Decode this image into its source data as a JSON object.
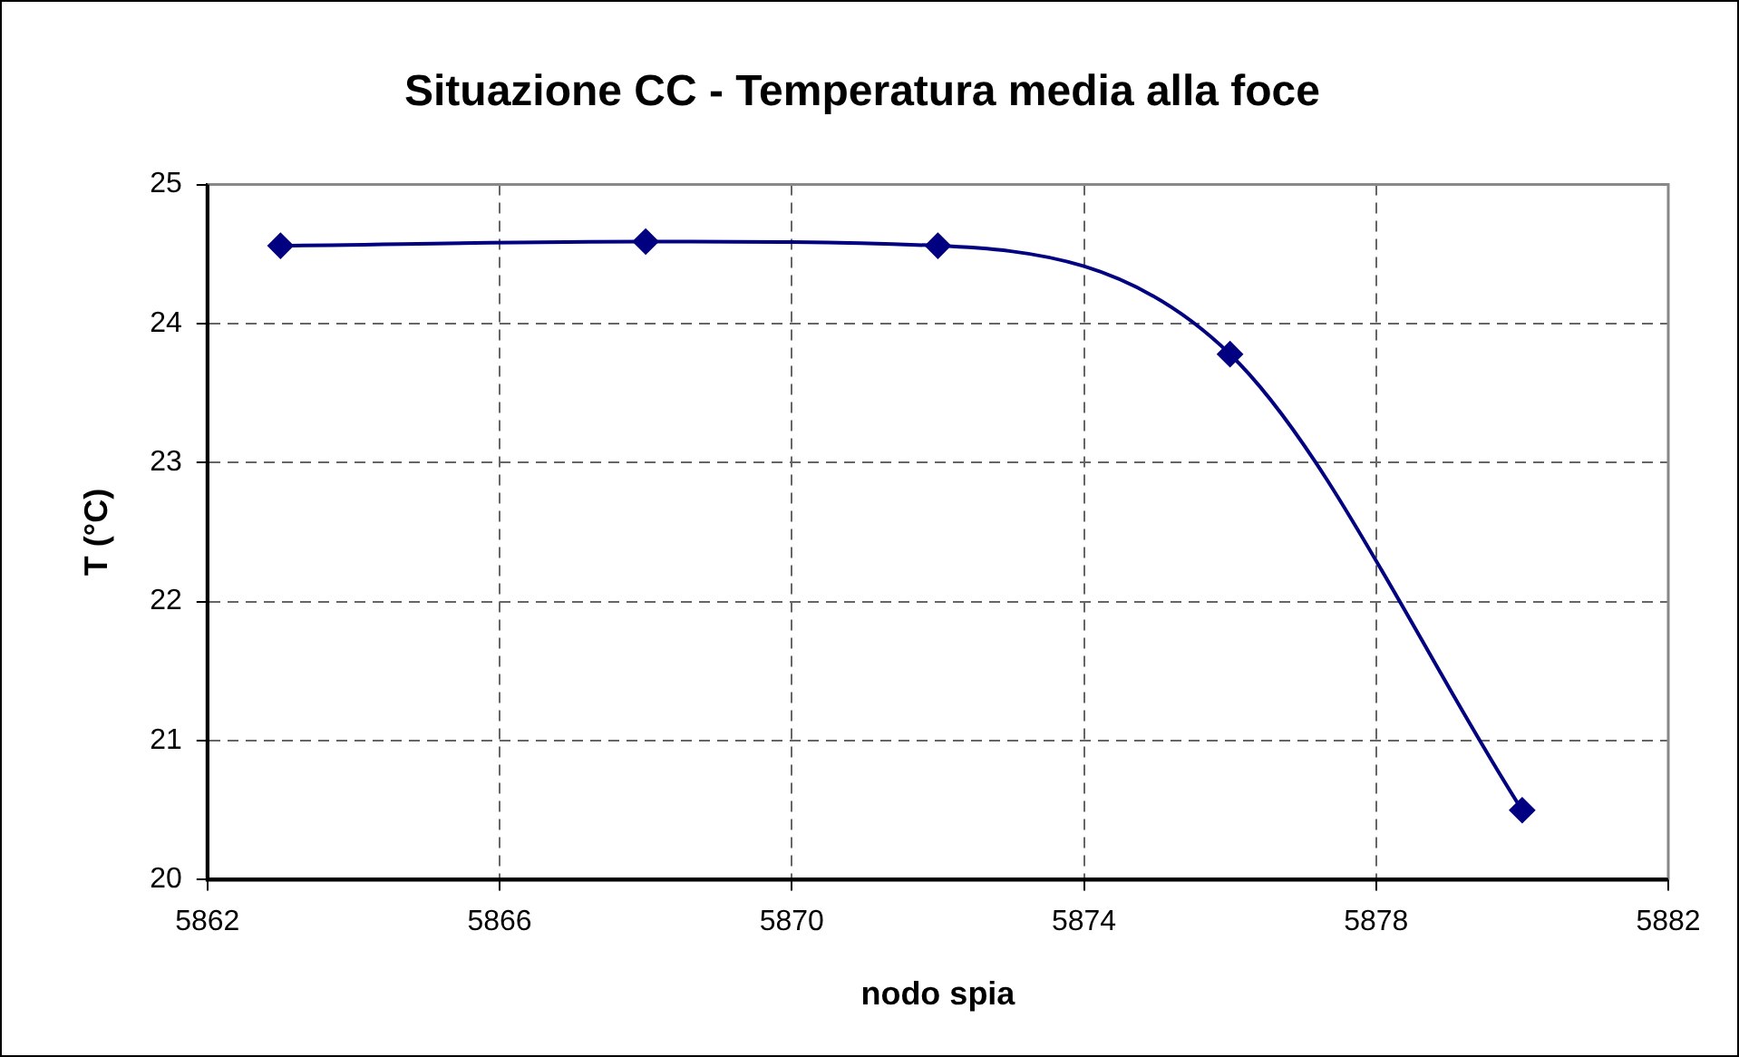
{
  "chart_data": {
    "type": "line",
    "title": "Situazione CC - Temperatura media alla foce",
    "xlabel": "nodo spia",
    "ylabel": "T (°C)",
    "x": [
      5863,
      5868,
      5872,
      5876,
      5880
    ],
    "series": [
      {
        "color": "#000080",
        "values": [
          24.56,
          24.59,
          24.56,
          23.78,
          20.5
        ]
      }
    ],
    "xlim": [
      5862,
      5882
    ],
    "xticks": [
      5862,
      5866,
      5870,
      5874,
      5878,
      5882
    ],
    "ylim": [
      20,
      25
    ],
    "yticks": [
      20,
      21,
      22,
      23,
      24,
      25
    ],
    "grid": true,
    "legend": false,
    "marker": "diamond",
    "line_style": "solid"
  }
}
